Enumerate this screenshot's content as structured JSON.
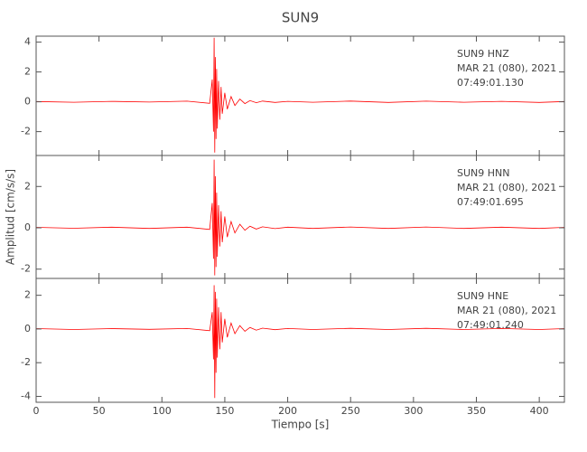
{
  "chart_data": [
    {
      "type": "line",
      "title": "SUN9",
      "annotations": [
        "SUN9   HNZ",
        "MAR 21 (080), 2021",
        "07:49:01.130"
      ],
      "xlim": [
        0,
        420
      ],
      "xticks": [
        0,
        50,
        100,
        150,
        200,
        250,
        300,
        350,
        400
      ],
      "ylim": [
        -3.6,
        4.4
      ],
      "yticks": [
        -2,
        0,
        2,
        4
      ],
      "series": [
        {
          "color": "#ff0000",
          "x": [
            0,
            30,
            60,
            90,
            120,
            138,
            140,
            141,
            141.5,
            142,
            142.5,
            143,
            143.5,
            144,
            145,
            146,
            147,
            148,
            150,
            152,
            155,
            158,
            162,
            166,
            170,
            175,
            180,
            190,
            200,
            220,
            250,
            280,
            310,
            340,
            370,
            400,
            420
          ],
          "values": [
            0.02,
            -0.03,
            0.03,
            -0.02,
            0.04,
            -0.1,
            1.5,
            -2.0,
            4.3,
            -3.4,
            3.0,
            -2.5,
            2.2,
            -1.8,
            1.4,
            -1.2,
            1.0,
            -0.8,
            0.6,
            -0.5,
            0.35,
            -0.25,
            0.18,
            -0.12,
            0.08,
            -0.06,
            0.05,
            -0.04,
            0.03,
            -0.03,
            0.05,
            -0.04,
            0.04,
            -0.03,
            0.03,
            -0.04,
            0.02
          ]
        }
      ]
    },
    {
      "type": "line",
      "y_label": "Amplitud [cm/s/s]",
      "annotations": [
        "SUN9   HNN",
        "MAR 21 (080), 2021",
        "07:49:01.695"
      ],
      "xlim": [
        0,
        420
      ],
      "xticks": [
        0,
        50,
        100,
        150,
        200,
        250,
        300,
        350,
        400
      ],
      "ylim": [
        -2.45,
        3.5
      ],
      "yticks": [
        -2,
        0,
        2
      ],
      "series": [
        {
          "color": "#ff0000",
          "x": [
            0,
            30,
            60,
            90,
            120,
            138,
            140,
            141,
            141.5,
            142,
            142.5,
            143,
            143.5,
            144,
            145,
            146,
            147,
            148,
            150,
            152,
            155,
            158,
            162,
            166,
            170,
            175,
            180,
            190,
            200,
            220,
            250,
            280,
            310,
            340,
            370,
            400,
            420
          ],
          "values": [
            0.02,
            -0.02,
            0.03,
            -0.03,
            0.03,
            -0.08,
            1.2,
            -1.5,
            3.3,
            -2.3,
            2.5,
            -1.9,
            1.7,
            -1.4,
            1.1,
            -0.9,
            0.8,
            -0.7,
            0.55,
            -0.45,
            0.3,
            -0.25,
            0.17,
            -0.12,
            0.08,
            -0.06,
            0.05,
            -0.04,
            0.03,
            -0.03,
            0.04,
            -0.03,
            0.04,
            -0.03,
            0.03,
            -0.03,
            0.02
          ]
        }
      ]
    },
    {
      "type": "line",
      "x_label": "Tiempo [s]",
      "annotations": [
        "SUN9   HNE",
        "MAR 21 (080), 2021",
        "07:49:01.240"
      ],
      "xlim": [
        0,
        420
      ],
      "xticks": [
        0,
        50,
        100,
        150,
        200,
        250,
        300,
        350,
        400
      ],
      "ylim": [
        -4.35,
        3.0
      ],
      "yticks": [
        -4,
        -2,
        0,
        2
      ],
      "series": [
        {
          "color": "#ff0000",
          "x": [
            0,
            30,
            60,
            90,
            120,
            138,
            140,
            141,
            141.5,
            142,
            142.5,
            143,
            143.5,
            144,
            145,
            146,
            147,
            148,
            150,
            152,
            155,
            158,
            162,
            166,
            170,
            175,
            180,
            190,
            200,
            220,
            250,
            280,
            310,
            340,
            370,
            400,
            420
          ],
          "values": [
            0.02,
            -0.03,
            0.02,
            -0.02,
            0.03,
            -0.1,
            1.0,
            -1.8,
            2.6,
            -4.1,
            2.2,
            -2.6,
            1.8,
            -1.7,
            1.3,
            -1.2,
            1.0,
            -0.8,
            0.6,
            -0.5,
            0.35,
            -0.28,
            0.2,
            -0.14,
            0.09,
            -0.07,
            0.05,
            -0.04,
            0.03,
            -0.03,
            0.04,
            -0.03,
            0.04,
            -0.03,
            0.03,
            -0.03,
            0.02
          ]
        }
      ]
    }
  ]
}
